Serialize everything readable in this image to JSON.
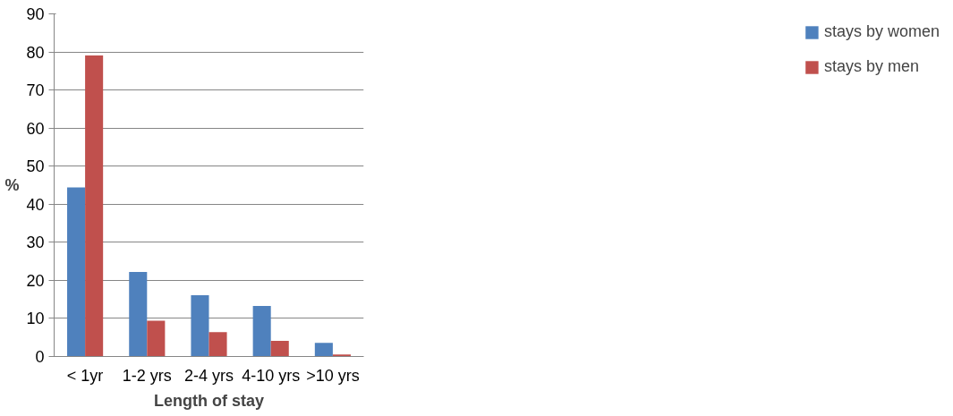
{
  "chart_data": {
    "type": "bar",
    "xlabel": "Length of stay",
    "ylabel": "%",
    "categories": [
      "< 1yr",
      "1-2 yrs",
      "2-4 yrs",
      "4-10 yrs",
      ">10 yrs"
    ],
    "series": [
      {
        "name": "stays by women",
        "color": "#4f81bd",
        "values": [
          44.4,
          22.2,
          16.1,
          13.3,
          3.6
        ]
      },
      {
        "name": "stays by men",
        "color": "#c0504d",
        "values": [
          79.1,
          9.4,
          6.4,
          4.1,
          0.5
        ]
      }
    ],
    "ylim": [
      0,
      90
    ],
    "yticks": [
      0,
      10,
      20,
      30,
      40,
      50,
      60,
      70,
      80,
      90
    ],
    "grid": "y",
    "legend": "right"
  }
}
